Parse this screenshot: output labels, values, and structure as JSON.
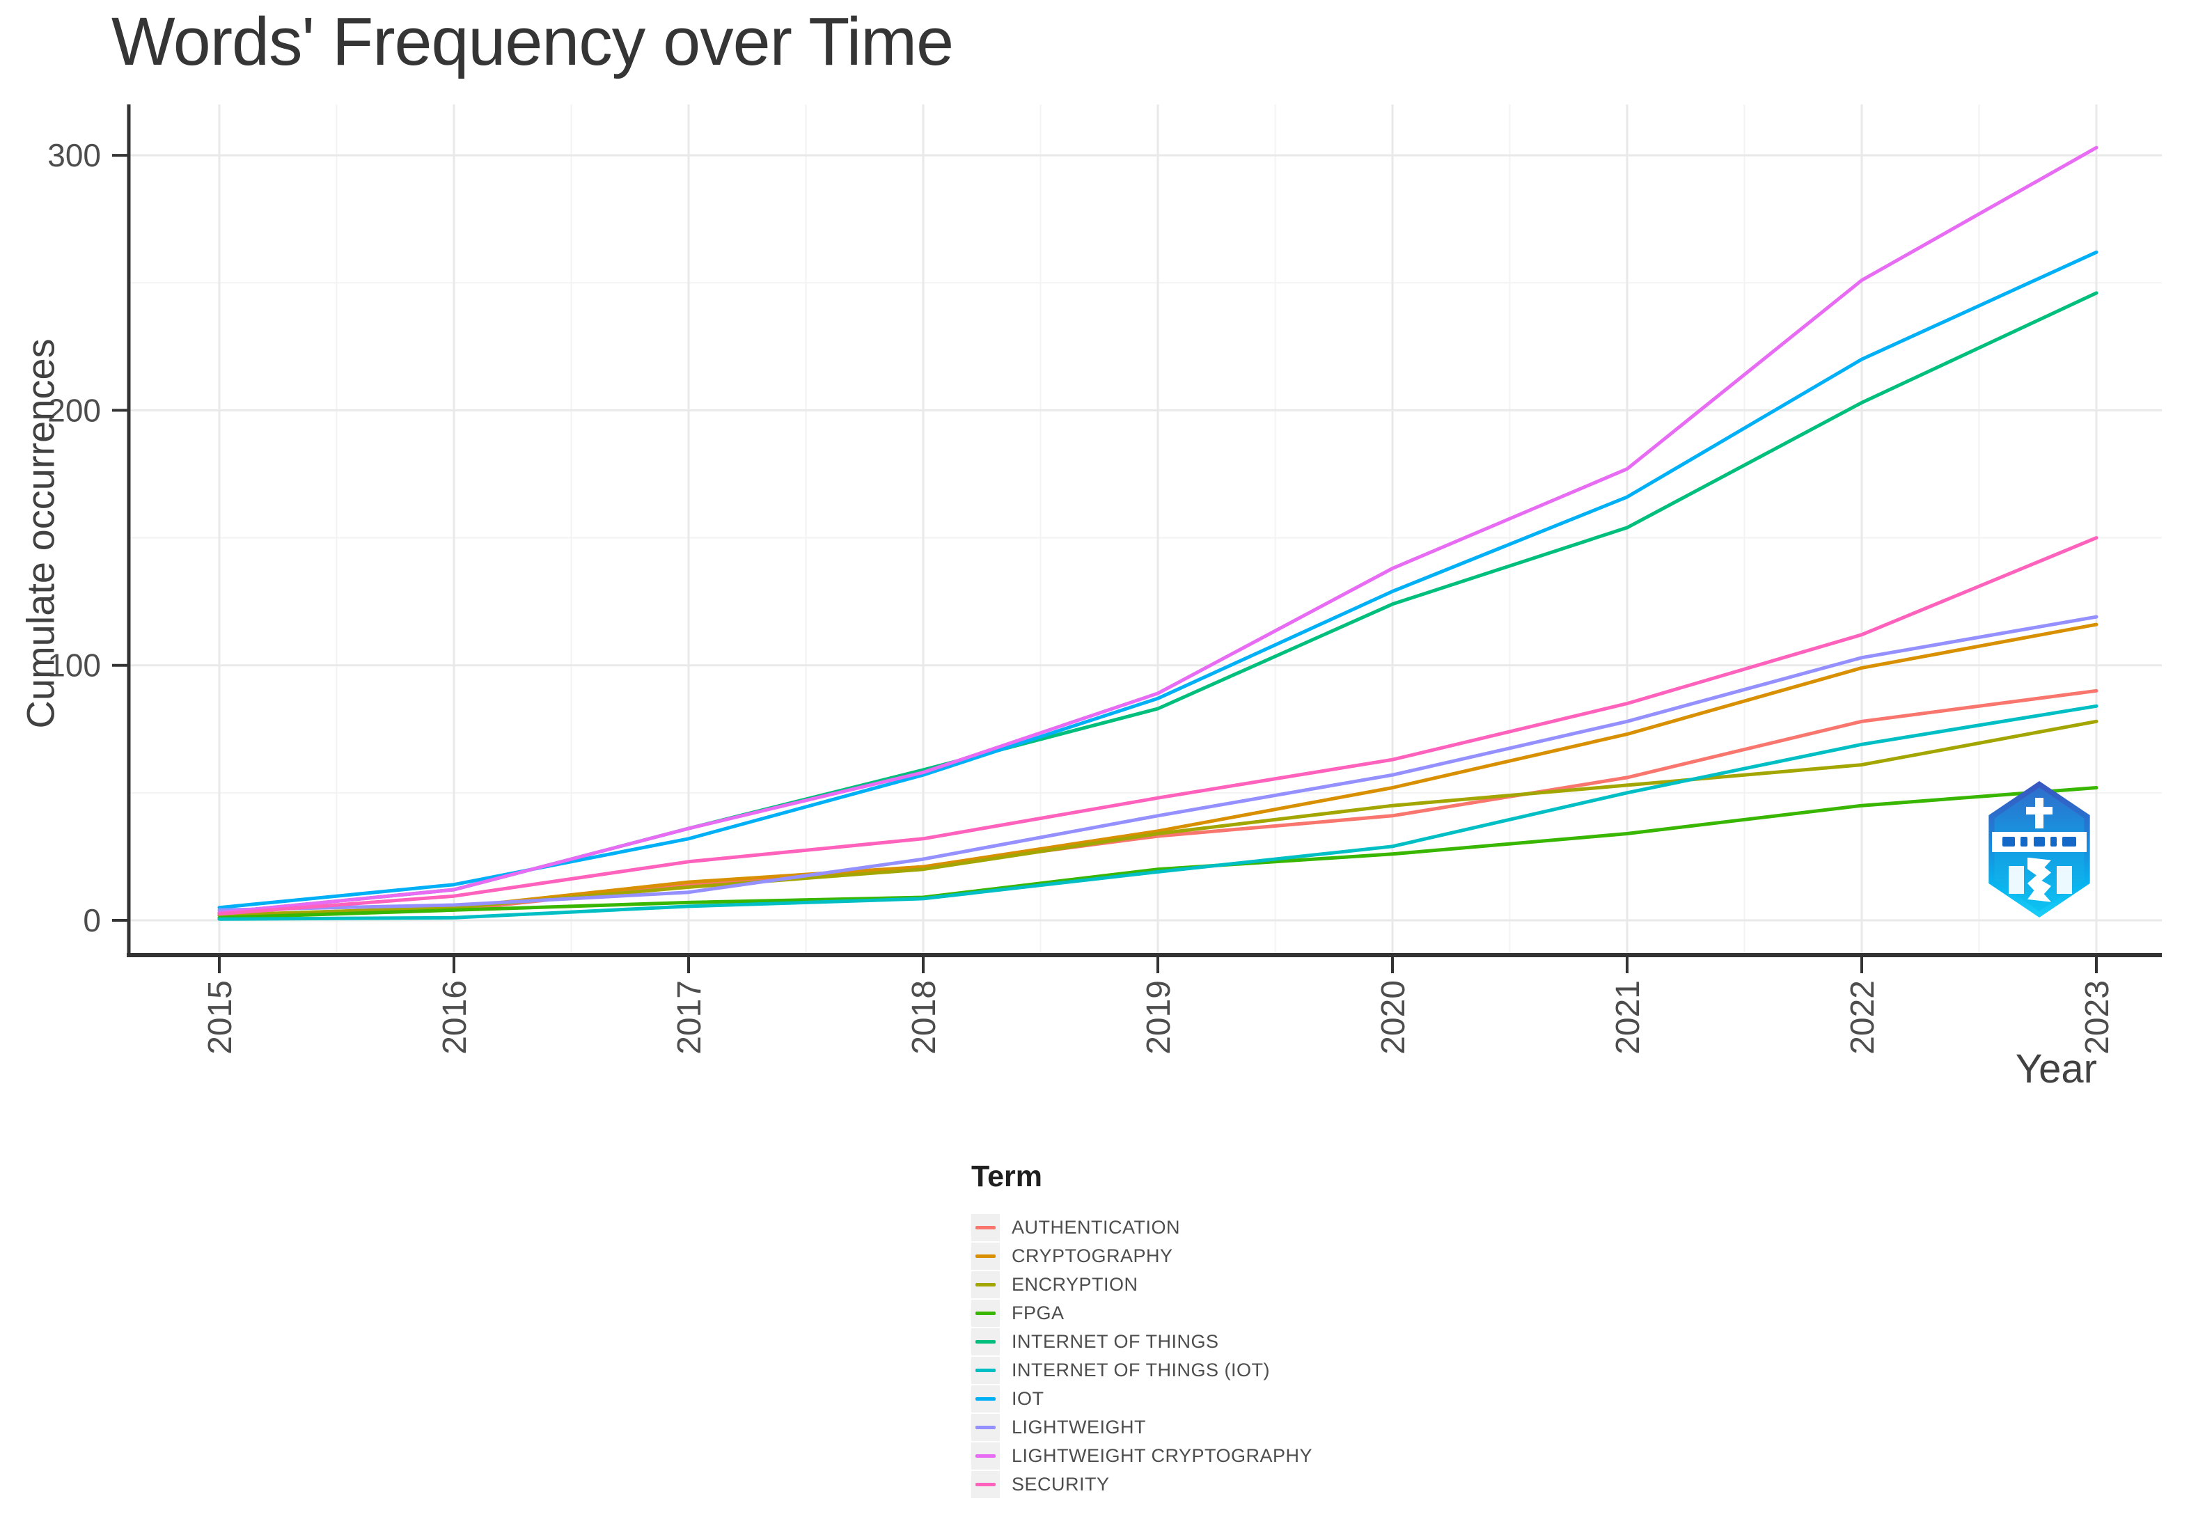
{
  "title": "Words' Frequency over Time",
  "axes": {
    "x_label": "Year",
    "y_label": "Cumulate occurrences"
  },
  "legend": {
    "title": "Term"
  },
  "chart_data": {
    "type": "line",
    "title": "Words' Frequency over Time",
    "xlabel": "Year",
    "ylabel": "Cumulate occurrences",
    "x": [
      2015,
      2016,
      2017,
      2018,
      2019,
      2020,
      2021,
      2022,
      2023
    ],
    "y_ticks": [
      0,
      100,
      200,
      300
    ],
    "y_minor_ticks": [
      50,
      150,
      250
    ],
    "ylim": [
      0,
      320
    ],
    "grid": true,
    "legend_position": "bottom",
    "series": [
      {
        "name": "AUTHENTICATION",
        "color": "#F8766D",
        "values": [
          2,
          4,
          14,
          21,
          33,
          41,
          56,
          78,
          90
        ]
      },
      {
        "name": "CRYPTOGRAPHY",
        "color": "#D89000",
        "values": [
          2,
          5,
          15,
          21,
          35,
          52,
          73,
          99,
          116
        ]
      },
      {
        "name": "ENCRYPTION",
        "color": "#A3A500",
        "values": [
          2,
          5,
          13,
          20,
          34,
          45,
          53,
          61,
          78
        ]
      },
      {
        "name": "FPGA",
        "color": "#39B600",
        "values": [
          1,
          4,
          7,
          9,
          20,
          26,
          34,
          45,
          52
        ]
      },
      {
        "name": "INTERNET OF THINGS",
        "color": "#00BF7D",
        "values": [
          3,
          12,
          36,
          59,
          83,
          124,
          154,
          203,
          246
        ]
      },
      {
        "name": "INTERNET OF THINGS (IOT)",
        "color": "#00BFC4",
        "values": [
          0.5,
          1,
          5.5,
          8.5,
          19,
          29,
          50,
          69,
          84
        ]
      },
      {
        "name": "IOT",
        "color": "#00B0F6",
        "values": [
          5,
          14,
          32,
          57,
          87,
          129,
          166,
          220,
          262
        ]
      },
      {
        "name": "LIGHTWEIGHT",
        "color": "#9590FF",
        "values": [
          4,
          6,
          11,
          24,
          41,
          57,
          78,
          103,
          119
        ]
      },
      {
        "name": "LIGHTWEIGHT CRYPTOGRAPHY",
        "color": "#E76BF3",
        "values": [
          3,
          12,
          36,
          58,
          89,
          138,
          177,
          251,
          303
        ]
      },
      {
        "name": "SECURITY",
        "color": "#FF62BC",
        "values": [
          2.5,
          9.5,
          23,
          32,
          48,
          63,
          85,
          112,
          150
        ]
      }
    ]
  }
}
